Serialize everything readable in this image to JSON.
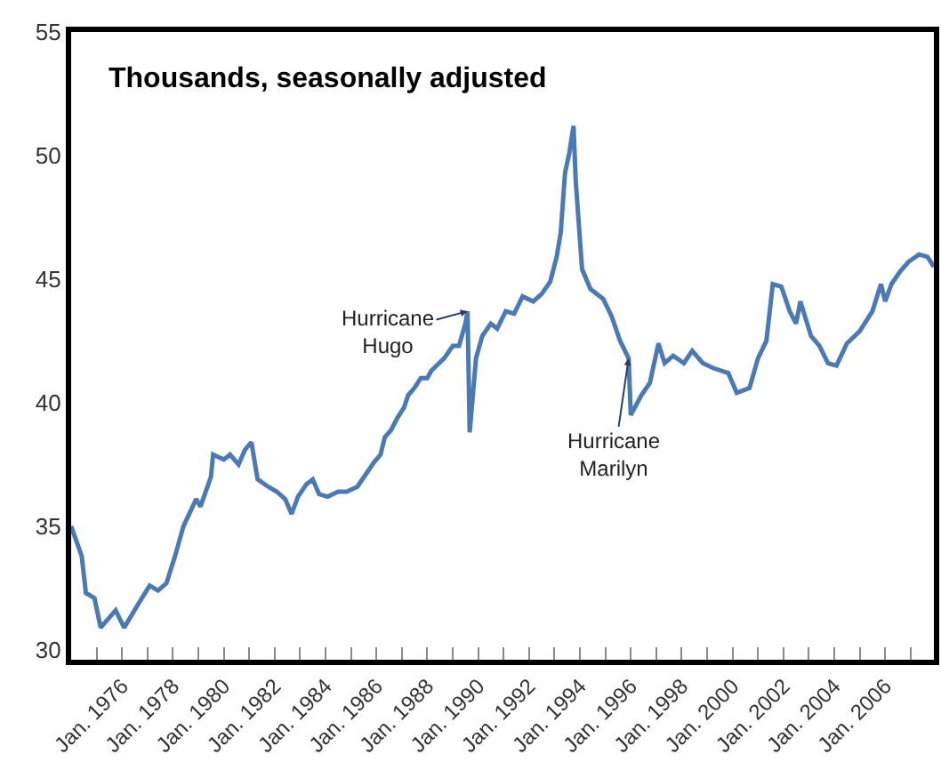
{
  "chart_data": {
    "type": "line",
    "title": "Thousands, seasonally adjusted",
    "x": [
      "1974-01",
      "1974-06",
      "1974-08",
      "1974-12",
      "1975-03",
      "1975-10",
      "1976-02",
      "1976-09",
      "1977-02",
      "1977-06",
      "1977-10",
      "1978-02",
      "1978-06",
      "1978-12",
      "1979-02",
      "1979-07",
      "1979-08",
      "1980-01",
      "1980-04",
      "1980-08",
      "1980-11",
      "1981-02",
      "1981-05",
      "1981-10",
      "1982-02",
      "1982-06",
      "1982-09",
      "1982-12",
      "1983-04",
      "1983-07",
      "1983-10",
      "1984-02",
      "1984-07",
      "1984-11",
      "1985-04",
      "1985-08",
      "1985-12",
      "1986-03",
      "1986-05",
      "1986-08",
      "1986-11",
      "1987-02",
      "1987-04",
      "1987-07",
      "1987-10",
      "1988-01",
      "1988-03",
      "1988-09",
      "1989-01",
      "1989-04",
      "1989-07",
      "1989-08",
      "1989-09",
      "1989-12",
      "1990-03",
      "1990-07",
      "1990-10",
      "1991-02",
      "1991-06",
      "1991-10",
      "1992-03",
      "1992-07",
      "1992-11",
      "1993-02",
      "1993-04",
      "1993-06",
      "1993-08",
      "1993-10",
      "1993-11",
      "1994-02",
      "1994-06",
      "1994-12",
      "1995-04",
      "1995-08",
      "1995-12",
      "1996-01",
      "1996-06",
      "1996-10",
      "1997-02",
      "1997-05",
      "1997-09",
      "1998-02",
      "1998-06",
      "1998-11",
      "1999-04",
      "1999-11",
      "2000-03",
      "2000-09",
      "2001-01",
      "2001-05",
      "2001-08",
      "2001-12",
      "2002-04",
      "2002-07",
      "2002-09",
      "2003-02",
      "2003-06",
      "2003-10",
      "2004-02",
      "2004-07",
      "2005-01",
      "2005-07",
      "2005-11",
      "2006-01",
      "2006-04",
      "2006-08",
      "2006-12",
      "2007-05",
      "2007-09",
      "2007-12"
    ],
    "series": [
      {
        "color": "#4a7ab5",
        "values": [
          35.0,
          33.8,
          32.3,
          32.1,
          30.9,
          31.6,
          30.9,
          31.9,
          32.6,
          32.4,
          32.7,
          33.8,
          35.0,
          36.1,
          35.8,
          37.0,
          37.9,
          37.7,
          37.9,
          37.5,
          38.1,
          38.4,
          36.9,
          36.6,
          36.4,
          36.1,
          35.5,
          36.2,
          36.7,
          36.9,
          36.3,
          36.2,
          36.4,
          36.4,
          36.6,
          37.1,
          37.6,
          37.9,
          38.6,
          38.9,
          39.4,
          39.8,
          40.3,
          40.6,
          41.0,
          41.0,
          41.3,
          41.8,
          42.3,
          42.3,
          43.2,
          43.7,
          38.8,
          41.8,
          42.7,
          43.2,
          43.0,
          43.7,
          43.6,
          44.3,
          44.1,
          44.4,
          44.9,
          45.9,
          46.9,
          49.3,
          50.1,
          51.2,
          49.0,
          45.4,
          44.6,
          44.2,
          43.5,
          42.5,
          41.8,
          39.5,
          40.3,
          40.8,
          42.4,
          41.6,
          41.9,
          41.6,
          42.1,
          41.6,
          41.4,
          41.2,
          40.4,
          40.6,
          41.8,
          42.5,
          44.8,
          44.7,
          43.7,
          43.2,
          44.1,
          42.7,
          42.3,
          41.6,
          41.5,
          42.4,
          42.9,
          43.7,
          44.8,
          44.1,
          44.8,
          45.3,
          45.7,
          46.0,
          45.9,
          45.5
        ]
      }
    ],
    "xlim": [
      "1974-01",
      "2007-12"
    ],
    "xticks": [
      {
        "value": "1975-01",
        "label": null
      },
      {
        "value": "1976-01",
        "label": "Jan. 1976"
      },
      {
        "value": "1977-01",
        "label": null
      },
      {
        "value": "1978-01",
        "label": "Jan. 1978"
      },
      {
        "value": "1979-01",
        "label": null
      },
      {
        "value": "1980-01",
        "label": "Jan. 1980"
      },
      {
        "value": "1981-01",
        "label": null
      },
      {
        "value": "1982-01",
        "label": "Jan. 1982"
      },
      {
        "value": "1983-01",
        "label": null
      },
      {
        "value": "1984-01",
        "label": "Jan. 1984"
      },
      {
        "value": "1985-01",
        "label": null
      },
      {
        "value": "1986-01",
        "label": "Jan. 1986"
      },
      {
        "value": "1987-01",
        "label": null
      },
      {
        "value": "1988-01",
        "label": "Jan. 1988"
      },
      {
        "value": "1989-01",
        "label": null
      },
      {
        "value": "1990-01",
        "label": "Jan. 1990"
      },
      {
        "value": "1991-01",
        "label": null
      },
      {
        "value": "1992-01",
        "label": "Jan. 1992"
      },
      {
        "value": "1993-01",
        "label": null
      },
      {
        "value": "1994-01",
        "label": "Jan. 1994"
      },
      {
        "value": "1995-01",
        "label": null
      },
      {
        "value": "1996-01",
        "label": "Jan. 1996"
      },
      {
        "value": "1997-01",
        "label": null
      },
      {
        "value": "1998-01",
        "label": "Jan. 1998"
      },
      {
        "value": "1999-01",
        "label": null
      },
      {
        "value": "2000-01",
        "label": "Jan. 2000"
      },
      {
        "value": "2001-01",
        "label": null
      },
      {
        "value": "2002-01",
        "label": "Jan. 2002"
      },
      {
        "value": "2003-01",
        "label": null
      },
      {
        "value": "2004-01",
        "label": "Jan. 2004"
      },
      {
        "value": "2005-01",
        "label": null
      },
      {
        "value": "2006-01",
        "label": "Jan. 2006"
      },
      {
        "value": "2007-01",
        "label": null
      }
    ],
    "ylim": [
      29.6,
      55
    ],
    "yticks": [
      30,
      35,
      40,
      45,
      50,
      55
    ],
    "annotations": [
      {
        "text": "Hurricane\nHugo",
        "x": "1989-08",
        "y": 43.7
      },
      {
        "text": "Hurricane\nMarilyn",
        "x": "1995-12",
        "y": 41.8
      }
    ],
    "marker": "none",
    "line_style": "solid"
  }
}
